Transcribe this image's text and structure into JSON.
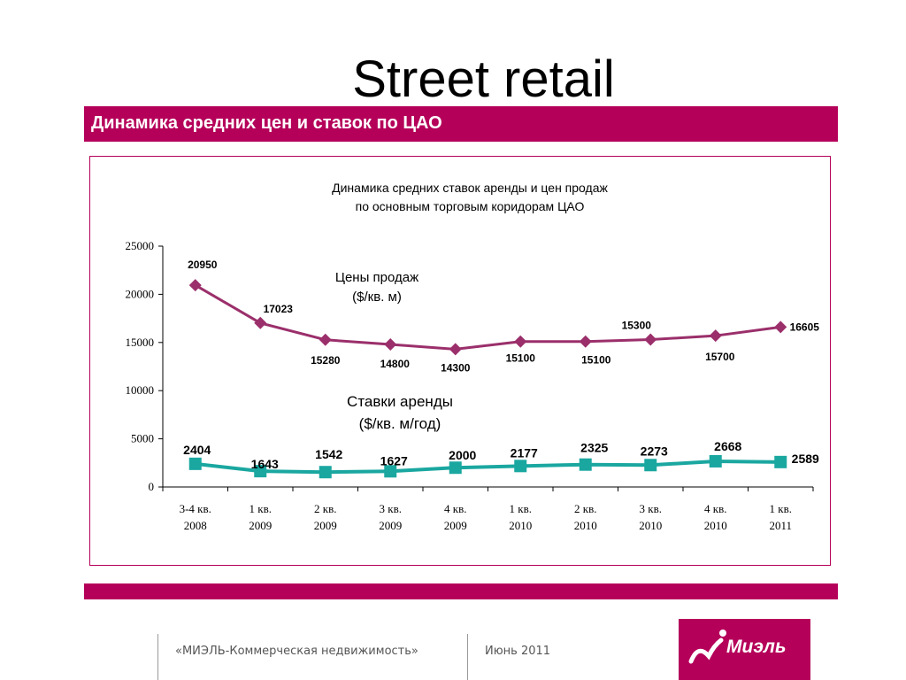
{
  "slide": {
    "title": "Street retail",
    "subtitle": "Динамика средних цен и ставок по ЦАО"
  },
  "footer": {
    "company": "«МИЭЛЬ-Коммерческая недвижимость»",
    "date": "Июнь 2011",
    "logo_text": "Миэль"
  },
  "colors": {
    "brand": "#b5005a",
    "sales_series": "#9b2f6b",
    "rent_series": "#1aa7a0"
  },
  "chart_data": {
    "type": "line",
    "title_line1": "Динамика средних ставок аренды и цен продаж",
    "title_line2": "по основным торговым коридорам ЦАО",
    "categories": [
      [
        "3-4 кв.",
        "2008"
      ],
      [
        "1 кв.",
        "2009"
      ],
      [
        "2 кв.",
        "2009"
      ],
      [
        "3 кв.",
        "2009"
      ],
      [
        "4 кв.",
        "2009"
      ],
      [
        "1 кв.",
        "2010"
      ],
      [
        "2 кв.",
        "2010"
      ],
      [
        "3 кв.",
        "2010"
      ],
      [
        "4 кв.",
        "2010"
      ],
      [
        "1 кв.",
        "2011"
      ]
    ],
    "ylim": [
      0,
      25000
    ],
    "yticks": [
      0,
      5000,
      10000,
      15000,
      20000,
      25000
    ],
    "series": [
      {
        "name_line1": "Цены продаж",
        "name_line2": "($/кв. м)",
        "marker": "diamond",
        "values": [
          20950,
          17023,
          15280,
          14800,
          14300,
          15100,
          15100,
          15300,
          15700,
          16605
        ]
      },
      {
        "name_line1": "Ставки аренды",
        "name_line2": "($/кв. м/год)",
        "marker": "square",
        "values": [
          2404,
          1643,
          1542,
          1627,
          2000,
          2177,
          2325,
          2273,
          2668,
          2589
        ]
      }
    ]
  }
}
